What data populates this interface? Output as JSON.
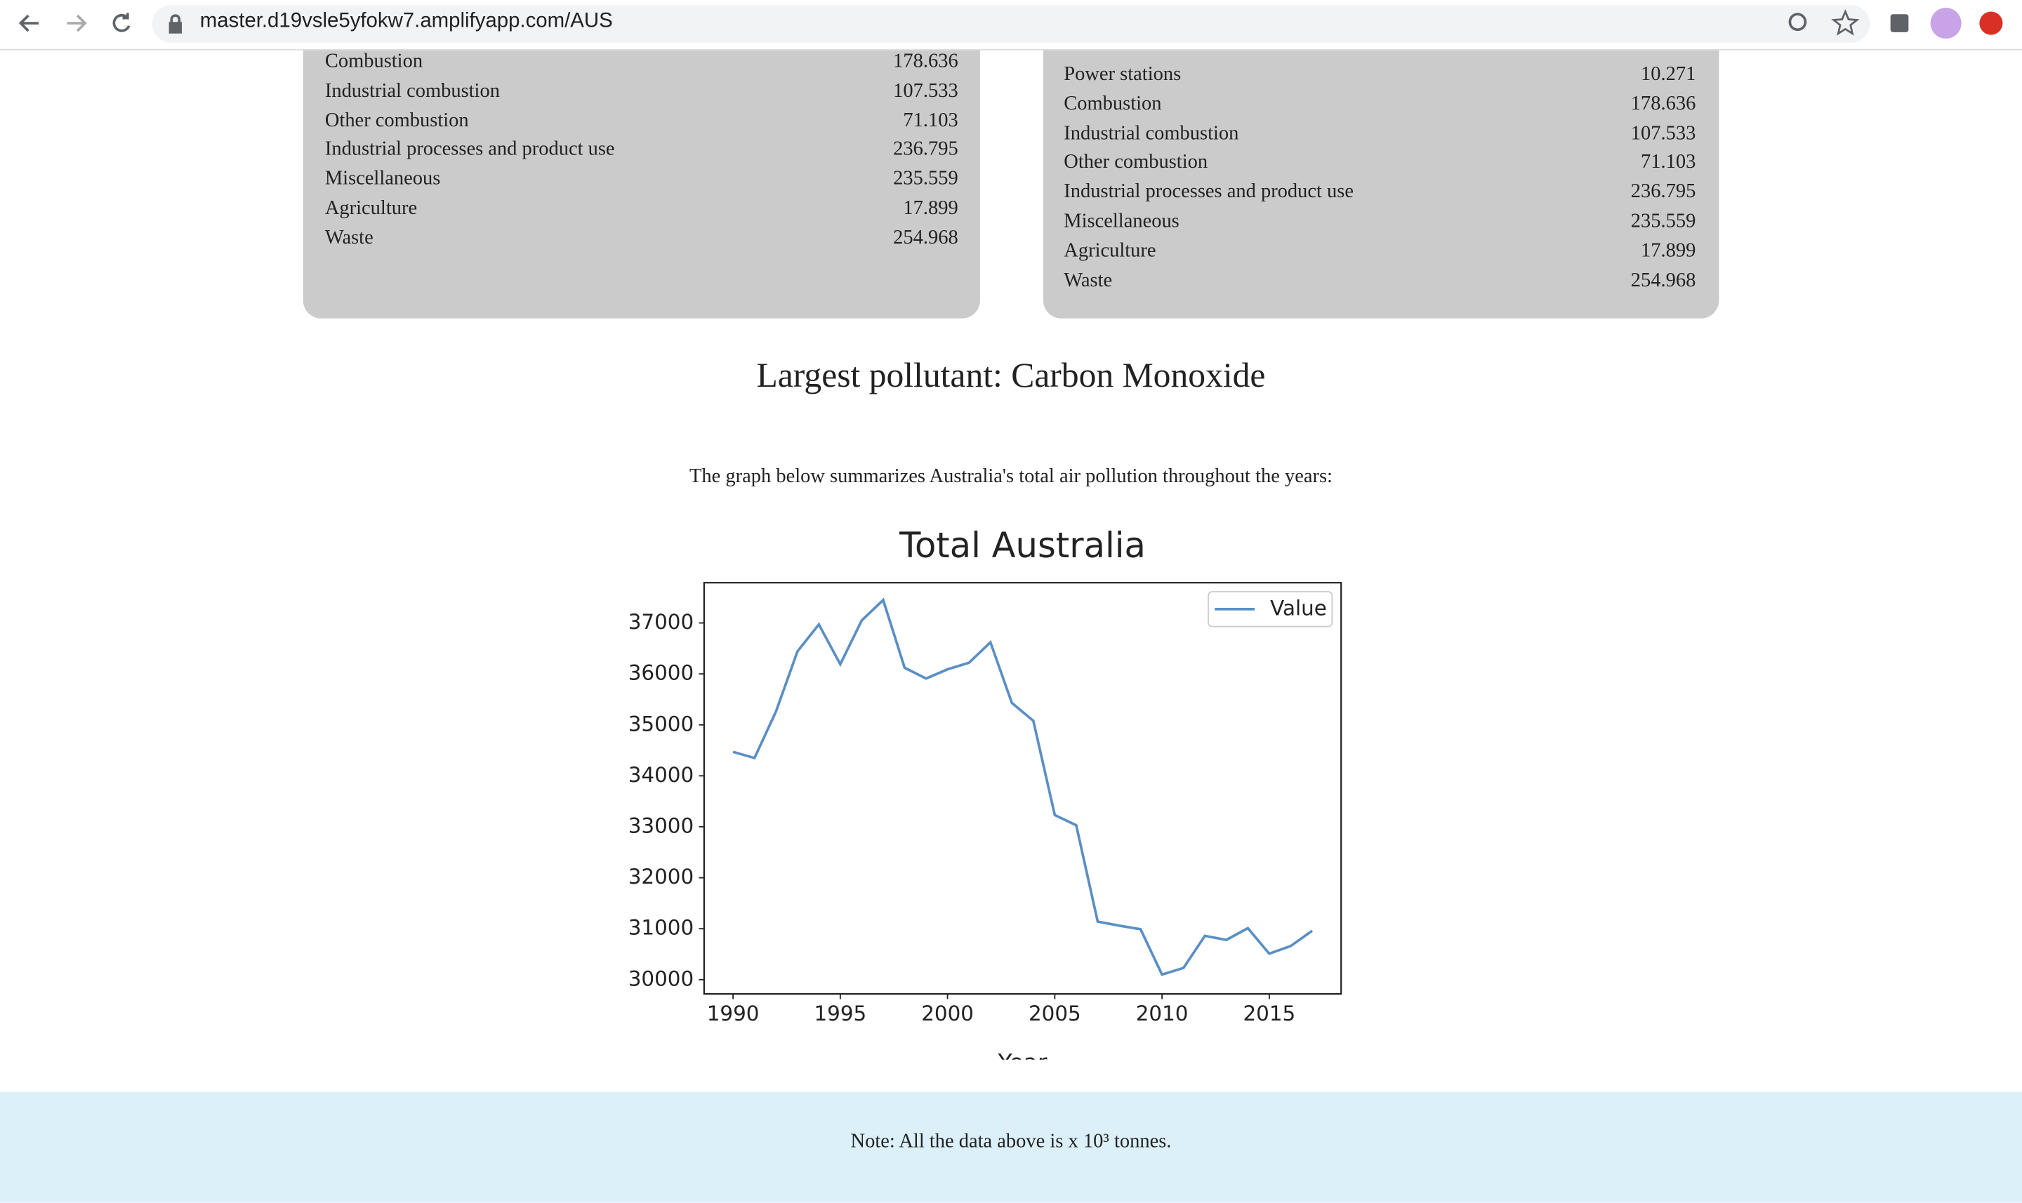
{
  "browser": {
    "url": "master.d19vsle5yfokw7.amplifyapp.com/AUS"
  },
  "left_card": {
    "rows": [
      [
        "Combustion",
        178.636
      ],
      [
        "Industrial combustion",
        107.533
      ],
      [
        "Other combustion",
        71.103
      ],
      [
        "Industrial processes and product use",
        236.795
      ],
      [
        "Miscellaneous",
        235.559
      ],
      [
        "Agriculture",
        17.899
      ],
      [
        "Waste",
        254.968
      ]
    ]
  },
  "right_card": {
    "rows": [
      [
        "Power stations",
        10.271
      ],
      [
        "Combustion",
        178.636
      ],
      [
        "Industrial combustion",
        107.533
      ],
      [
        "Other combustion",
        71.103
      ],
      [
        "Industrial processes and product use",
        236.795
      ],
      [
        "Miscellaneous",
        235.559
      ],
      [
        "Agriculture",
        17.899
      ],
      [
        "Waste",
        254.968
      ]
    ]
  },
  "heading": "Largest pollutant: Carbon Monoxide",
  "description": "The graph below summarizes Australia's total air pollution throughout the years:",
  "chart_data": {
    "type": "line",
    "title": "Total Australia",
    "xlabel": "Year",
    "x": [
      1990,
      1991,
      1992,
      1993,
      1994,
      1995,
      1996,
      1997,
      1998,
      1999,
      2000,
      2001,
      2002,
      2003,
      2004,
      2005,
      2006,
      2007,
      2008,
      2009,
      2010,
      2011,
      2012,
      2013,
      2014,
      2015,
      2016,
      2017
    ],
    "series": [
      {
        "name": "Value",
        "color": "#5a8fc4",
        "values": [
          34470,
          34350,
          35260,
          36440,
          36970,
          36190,
          37050,
          37450,
          36120,
          35910,
          36090,
          36220,
          36620,
          35430,
          35080,
          33230,
          33030,
          31140,
          31060,
          30990,
          30100,
          30230,
          30860,
          30780,
          31010,
          30510,
          30660,
          30960
        ]
      }
    ],
    "xlim": [
      1988.65,
      2018.35
    ],
    "ylim": [
      29720,
      37790
    ],
    "xticks": [
      1990,
      1995,
      2000,
      2005,
      2010,
      2015
    ],
    "yticks": [
      30000,
      31000,
      32000,
      33000,
      34000,
      35000,
      36000,
      37000
    ],
    "grid": false,
    "legend": "upper right"
  },
  "note": "Note: All the data above is x 10³ tonnes."
}
